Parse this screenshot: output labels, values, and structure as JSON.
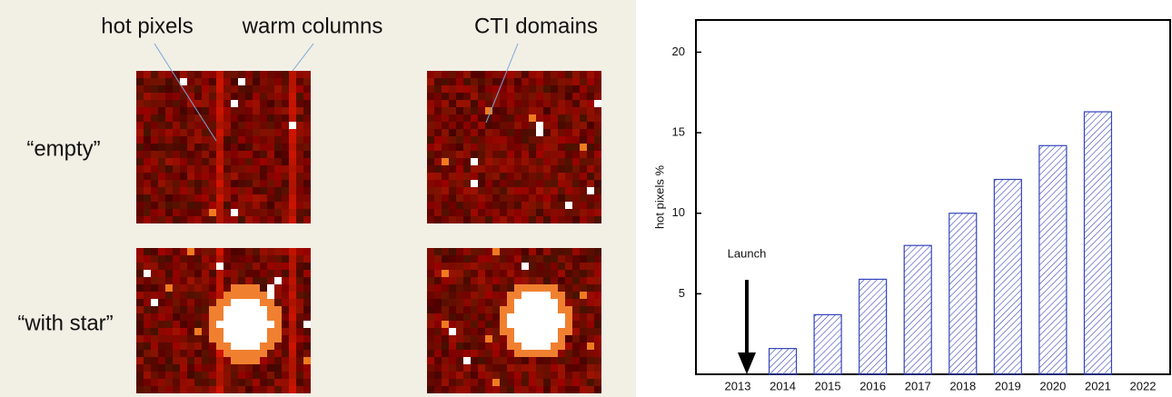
{
  "image_labels": {
    "hot_pixels": "hot pixels",
    "warm_columns": "warm columns",
    "cti_domains": "CTI domains",
    "empty": "“empty”",
    "with_star": "“with star”"
  },
  "chart_data": {
    "type": "bar",
    "y_label": "hot pixels %",
    "annotation": "Launch",
    "categories": [
      "2013",
      "2014",
      "2015",
      "2016",
      "2017",
      "2018",
      "2019",
      "2020",
      "2021",
      "2022"
    ],
    "values": [
      null,
      1.6,
      3.7,
      5.9,
      8.0,
      10.0,
      12.1,
      14.2,
      16.3,
      null
    ],
    "color": "#3344bb",
    "ylim": [
      0,
      22
    ],
    "yticks": [
      5,
      10,
      15,
      20
    ],
    "grid": false
  }
}
